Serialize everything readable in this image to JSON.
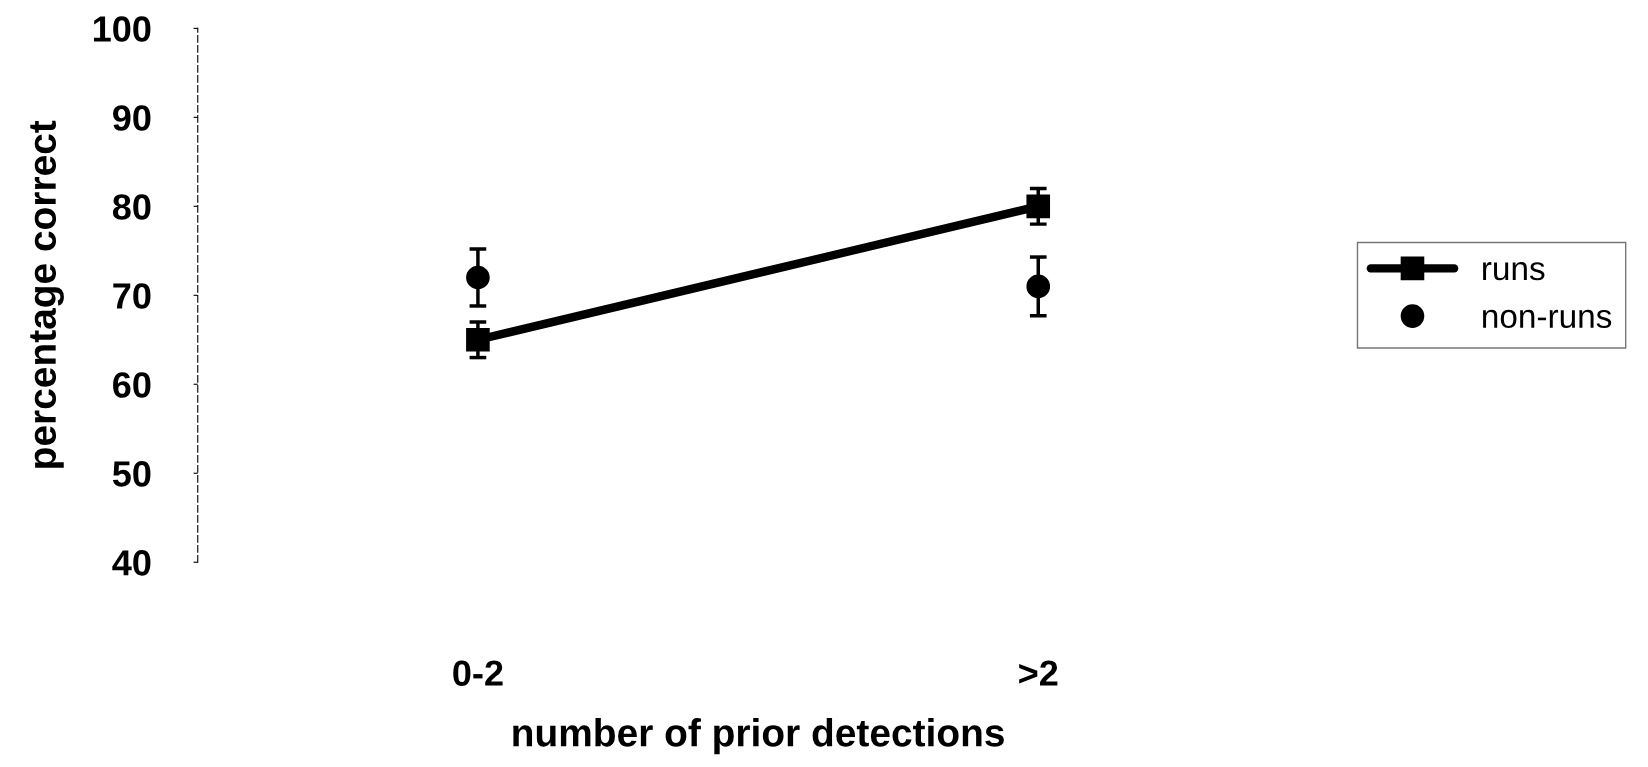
{
  "chart_data": {
    "type": "line",
    "xlabel": "number of prior detections",
    "ylabel": "percentage correct",
    "categories": [
      "0-2",
      ">2"
    ],
    "series": [
      {
        "name": "runs",
        "color": "#000000",
        "marker": "square",
        "values": [
          65,
          80
        ],
        "errors": [
          2,
          2
        ]
      },
      {
        "name": "non-runs",
        "color": "#000000",
        "type": "scatter",
        "marker": "circle",
        "values": [
          72,
          71
        ],
        "errors": [
          3.2,
          3.3
        ]
      }
    ],
    "ylim": [
      40,
      100
    ],
    "yticks": [
      40,
      50,
      60,
      70,
      80,
      90,
      100
    ],
    "grid": false,
    "legend": "right"
  }
}
